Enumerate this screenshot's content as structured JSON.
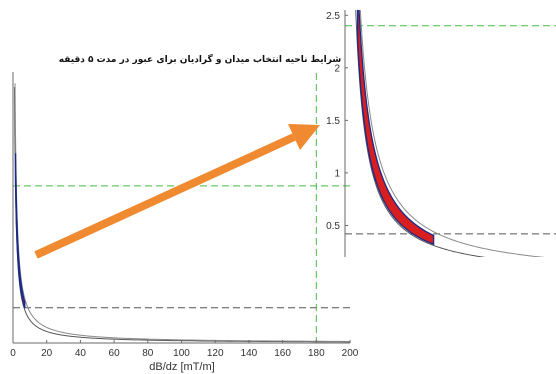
{
  "chart_data": [
    {
      "id": "main",
      "type": "line",
      "title": "شرایط ناحیه انتخاب میدان و گرادیان برای عبور در مدت ۵ دقیقه",
      "xlabel": "dB/dz [mT/m]",
      "ylabel": "",
      "xlim": [
        0,
        200
      ],
      "ylim": [
        0,
        10
      ],
      "xticks": [
        0,
        20,
        40,
        60,
        80,
        100,
        120,
        140,
        160,
        180,
        200
      ],
      "yticks": [],
      "grid": false,
      "legend": "none",
      "series": [
        {
          "role": "outer-curve-left",
          "color": "#555555",
          "k": 8.5,
          "x_from": 0.9,
          "x_to": 200
        },
        {
          "role": "outer-curve-right",
          "color": "#8a8a8a",
          "k": 11.5,
          "x_from": 1.2,
          "x_to": 200
        },
        {
          "role": "feasible-region",
          "color": "#d81e1e",
          "edge_color": "#1a2a8a",
          "k_low": 9.0,
          "k_high": 10.5,
          "x_from": 1.5,
          "x_to": 7.0
        }
      ],
      "reference_lines": [
        {
          "axis": "y",
          "value": 5.8,
          "color": "#44bb44",
          "dash": "long"
        },
        {
          "axis": "y",
          "value": 1.3,
          "color": "#555555",
          "dash": "long"
        },
        {
          "axis": "x",
          "value": 180,
          "color": "#44bb44",
          "dash": "long"
        }
      ]
    },
    {
      "id": "zoom",
      "type": "line",
      "title": "",
      "xlabel": "",
      "ylabel": "",
      "xlim": [
        0,
        10
      ],
      "ylim": [
        0.2,
        2.55
      ],
      "xticks": [],
      "yticks": [
        0.5,
        1,
        1.5,
        2,
        2.5
      ],
      "ytick_labels": [
        "0.5",
        "1",
        "1.5",
        "2",
        "2.5"
      ],
      "grid": false,
      "legend": "none",
      "series": [
        {
          "role": "outer-curve-left",
          "color": "#555555",
          "k": 1.3,
          "x_from": 0.5,
          "x_to": 10
        },
        {
          "role": "outer-curve-right",
          "color": "#8a8a8a",
          "k": 1.85,
          "x_from": 0.72,
          "x_to": 10
        },
        {
          "role": "feasible-region",
          "color": "#d81e1e",
          "edge_color": "#1a2a8a",
          "k_low": 1.35,
          "k_high": 1.7,
          "x_from": 0.6,
          "x_to": 4.2
        }
      ],
      "reference_lines": [
        {
          "axis": "y",
          "value": 2.4,
          "color": "#44bb44",
          "dash": "long"
        },
        {
          "axis": "y",
          "value": 0.42,
          "color": "#555555",
          "dash": "long"
        }
      ]
    }
  ],
  "arrow": {
    "color": "#f08a30",
    "meaning": "zoom-indicator"
  }
}
